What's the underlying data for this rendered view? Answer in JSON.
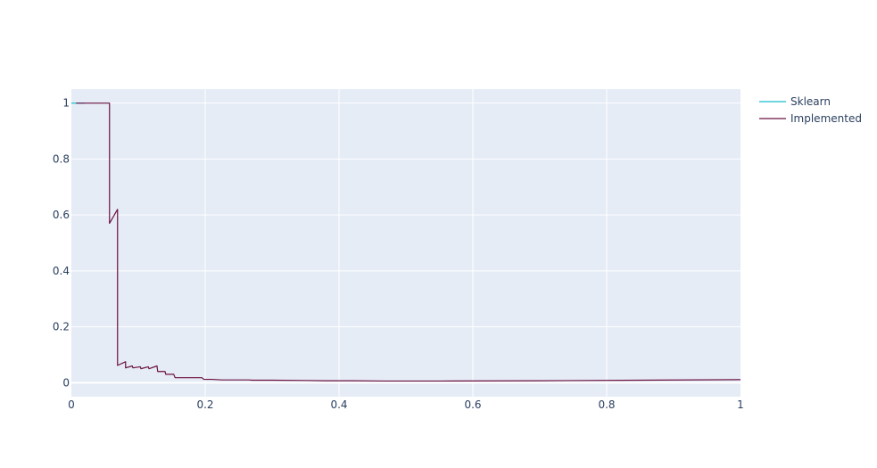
{
  "chart_data": {
    "type": "line",
    "title": "",
    "xlabel": "",
    "ylabel": "",
    "xlim": [
      0,
      1
    ],
    "ylim": [
      -0.05,
      1.05
    ],
    "grid": true,
    "legend_position": "top-right",
    "x_ticks": [
      {
        "value": 0,
        "label": "0"
      },
      {
        "value": 0.2,
        "label": "0.2"
      },
      {
        "value": 0.4,
        "label": "0.4"
      },
      {
        "value": 0.6,
        "label": "0.6"
      },
      {
        "value": 0.8,
        "label": "0.8"
      },
      {
        "value": 1,
        "label": "1"
      }
    ],
    "y_ticks": [
      {
        "value": 0,
        "label": "0"
      },
      {
        "value": 0.2,
        "label": "0.2"
      },
      {
        "value": 0.4,
        "label": "0.4"
      },
      {
        "value": 0.6,
        "label": "0.6"
      },
      {
        "value": 0.8,
        "label": "0.8"
      },
      {
        "value": 1,
        "label": "1"
      }
    ],
    "series": [
      {
        "name": "Sklearn",
        "color": "#17becf",
        "x": [
          0,
          0.013,
          0.02
        ],
        "y": [
          1,
          1,
          1
        ]
      },
      {
        "name": "Implemented",
        "color": "#6b1140",
        "x": [
          0.007,
          0.057,
          0.057,
          0.069,
          0.069,
          0.081,
          0.081,
          0.091,
          0.092,
          0.103,
          0.104,
          0.115,
          0.116,
          0.128,
          0.129,
          0.14,
          0.141,
          0.153,
          0.155,
          0.165,
          0.195,
          0.198,
          0.208,
          0.21,
          0.225,
          0.24,
          0.265,
          0.27,
          0.3,
          0.35,
          0.38,
          0.42,
          0.47,
          0.55,
          0.7,
          0.85,
          1
        ],
        "y": [
          1,
          1,
          0.57,
          0.62,
          0.062,
          0.075,
          0.053,
          0.06,
          0.053,
          0.057,
          0.05,
          0.057,
          0.05,
          0.06,
          0.04,
          0.04,
          0.03,
          0.03,
          0.018,
          0.018,
          0.018,
          0.012,
          0.012,
          0.012,
          0.01,
          0.01,
          0.01,
          0.009,
          0.009,
          0.008,
          0.007,
          0.007,
          0.006,
          0.006,
          0.007,
          0.009,
          0.011
        ]
      }
    ]
  }
}
